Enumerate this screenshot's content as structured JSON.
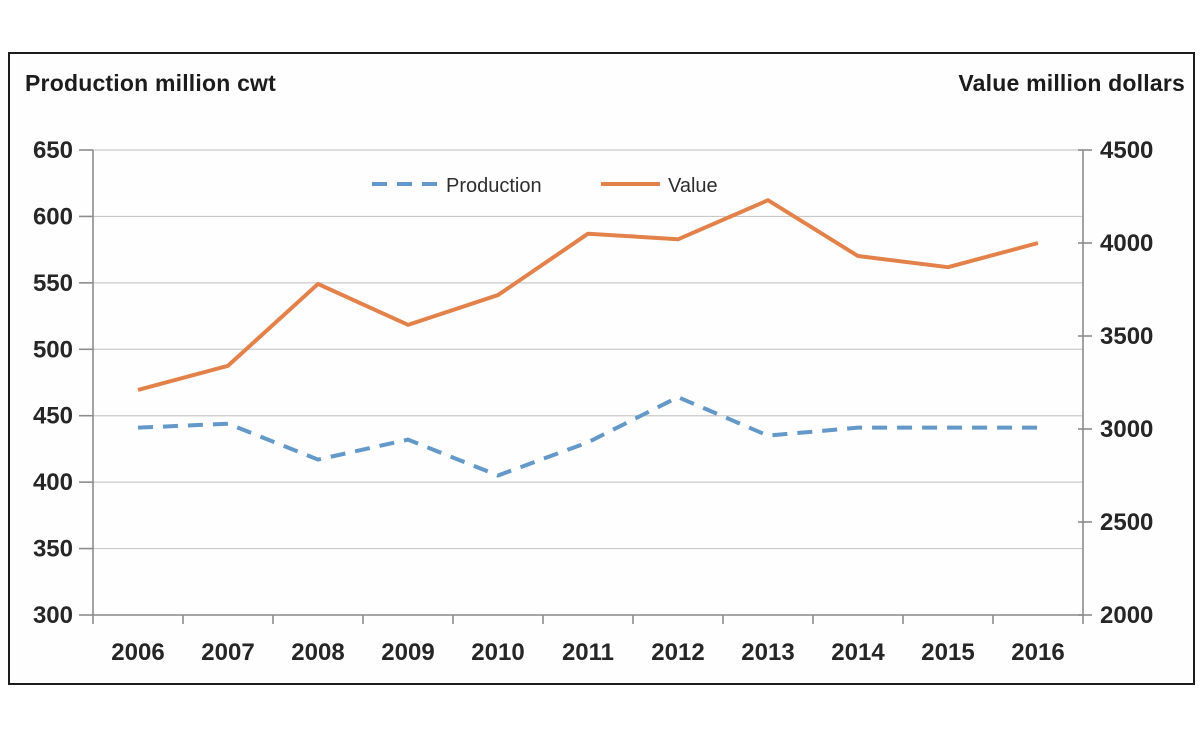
{
  "titles": {
    "left": "Production million cwt",
    "right": "Value million dollars"
  },
  "chart_data": {
    "type": "line",
    "x": [
      "2006",
      "2007",
      "2008",
      "2009",
      "2010",
      "2011",
      "2012",
      "2013",
      "2014",
      "2015",
      "2016"
    ],
    "series": [
      {
        "name": "Production",
        "axis": "left",
        "style": "dashed",
        "color": "#6398c8",
        "values": [
          441,
          444,
          417,
          432,
          405,
          430,
          464,
          435,
          441,
          441,
          441
        ]
      },
      {
        "name": "Value",
        "axis": "right",
        "style": "solid",
        "color": "#e2824a",
        "values": [
          3210,
          3340,
          3780,
          3560,
          3720,
          4050,
          4020,
          4230,
          3930,
          3870,
          4000
        ]
      }
    ],
    "left_axis": {
      "title": "Production million cwt",
      "min": 300,
      "max": 650,
      "step": 50,
      "ticks": [
        "650",
        "600",
        "550",
        "500",
        "450",
        "400",
        "350",
        "300"
      ]
    },
    "right_axis": {
      "title": "Value million dollars",
      "min": 2000,
      "max": 4500,
      "step": 500,
      "ticks": [
        "4500",
        "4000",
        "3500",
        "3000",
        "2500",
        "2000"
      ]
    },
    "grid": true,
    "legend_position": "top-center",
    "colors": {
      "gridline": "#c9c9c9",
      "axis_line": "#8c8c8c",
      "frame": "#1c1c1c",
      "tick_text": "#262626",
      "title_text": "#1c1c1c"
    }
  }
}
